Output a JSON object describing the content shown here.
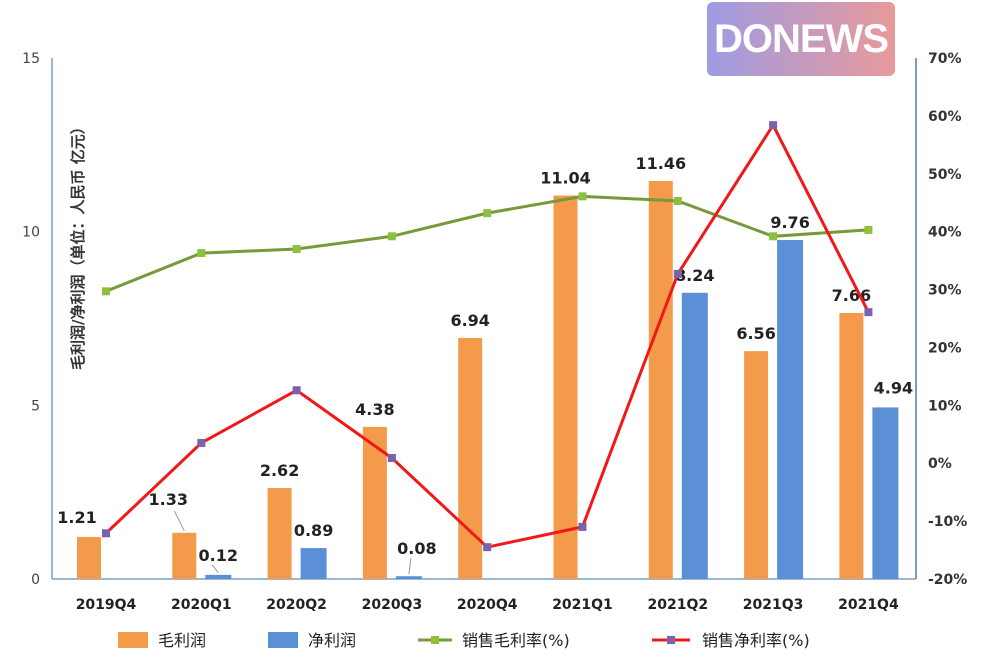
{
  "logo_text": "DONEWS",
  "chart_data": {
    "type": "bar+line",
    "categories": [
      "2019Q4",
      "2020Q1",
      "2020Q2",
      "2020Q3",
      "2020Q4",
      "2021Q1",
      "2021Q2",
      "2021Q3",
      "2021Q4"
    ],
    "ylabel": "毛利润/净利润（单位：人民币 亿元）",
    "ylim": [
      0,
      15
    ],
    "yticks": [
      "0",
      "5",
      "10",
      "15"
    ],
    "y2lim": [
      -20,
      70
    ],
    "y2ticks": [
      "-20%",
      "-10%",
      "0%",
      "10%",
      "20%",
      "30%",
      "40%",
      "50%",
      "60%",
      "70%"
    ],
    "grid": false,
    "legend_position": "bottom",
    "series": [
      {
        "name": "毛利润",
        "type": "bar",
        "axis": "left",
        "color": "#f39a4b",
        "values": [
          1.21,
          1.33,
          2.62,
          4.38,
          6.94,
          11.04,
          11.46,
          6.56,
          7.66
        ],
        "labels": [
          "1.21",
          "1.33",
          "2.62",
          "4.38",
          "6.94",
          "11.04",
          "11.46",
          "6.56",
          "7.66"
        ]
      },
      {
        "name": "净利润",
        "type": "bar",
        "axis": "left",
        "color": "#5b8fd6",
        "values": [
          null,
          0.12,
          0.89,
          0.08,
          null,
          null,
          8.24,
          9.76,
          4.94
        ],
        "labels": [
          null,
          "0.12",
          "0.89",
          "0.08",
          null,
          null,
          "8.24",
          "9.76",
          "4.94"
        ]
      },
      {
        "name": "销售毛利率(%)",
        "type": "line",
        "axis": "right",
        "color": "#77993a",
        "marker_color": "#8fbf3f",
        "values": [
          29.7,
          36.3,
          37.0,
          39.2,
          43.2,
          46.1,
          45.3,
          39.2,
          40.3
        ]
      },
      {
        "name": "销售净利率(%)",
        "type": "line",
        "axis": "right",
        "color": "#f01818",
        "marker_color": "#7b62a8",
        "values": [
          -12.1,
          3.5,
          12.6,
          0.9,
          -14.5,
          -11.0,
          32.7,
          58.4,
          26.1
        ]
      }
    ]
  }
}
